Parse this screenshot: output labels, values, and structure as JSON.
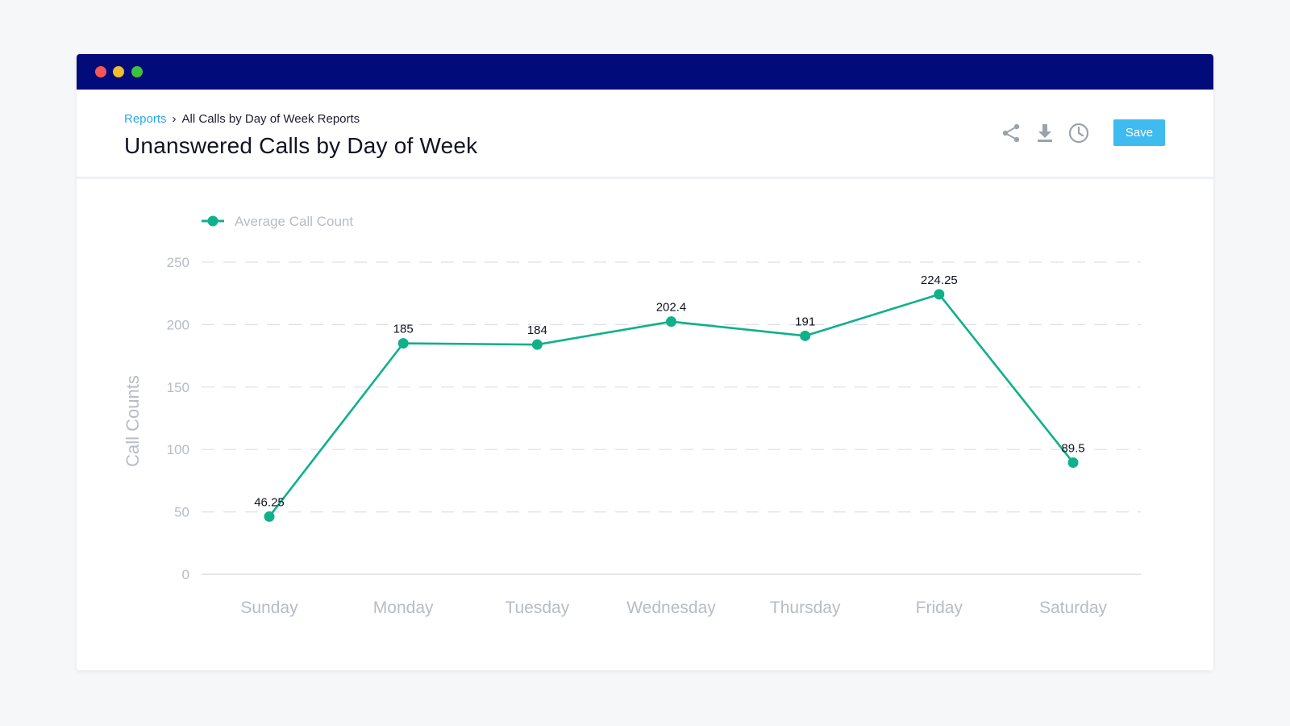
{
  "window": {
    "traffic_lights": [
      "#f25757",
      "#f0bc2c",
      "#3ec23e"
    ],
    "titlebar_color": "#020b7a"
  },
  "header": {
    "breadcrumb_link": "Reports",
    "breadcrumb_separator": "›",
    "breadcrumb_current": "All Calls by Day of Week Reports",
    "title": "Unanswered Calls by Day of Week",
    "save_label": "Save",
    "icons": [
      "share-icon",
      "download-icon",
      "clock-icon"
    ]
  },
  "chart_data": {
    "type": "line",
    "categories": [
      "Sunday",
      "Monday",
      "Tuesday",
      "Wednesday",
      "Thursday",
      "Friday",
      "Saturday"
    ],
    "series": [
      {
        "name": "Average Call Count",
        "values": [
          46.25,
          185,
          184,
          202.4,
          191,
          224.25,
          89.5
        ],
        "color": "#10b08a"
      }
    ],
    "ylabel": "Call Counts",
    "ylim": [
      0,
      250
    ],
    "yticks": [
      0,
      50,
      100,
      150,
      200,
      250
    ],
    "grid": true,
    "legend": "top-left"
  }
}
